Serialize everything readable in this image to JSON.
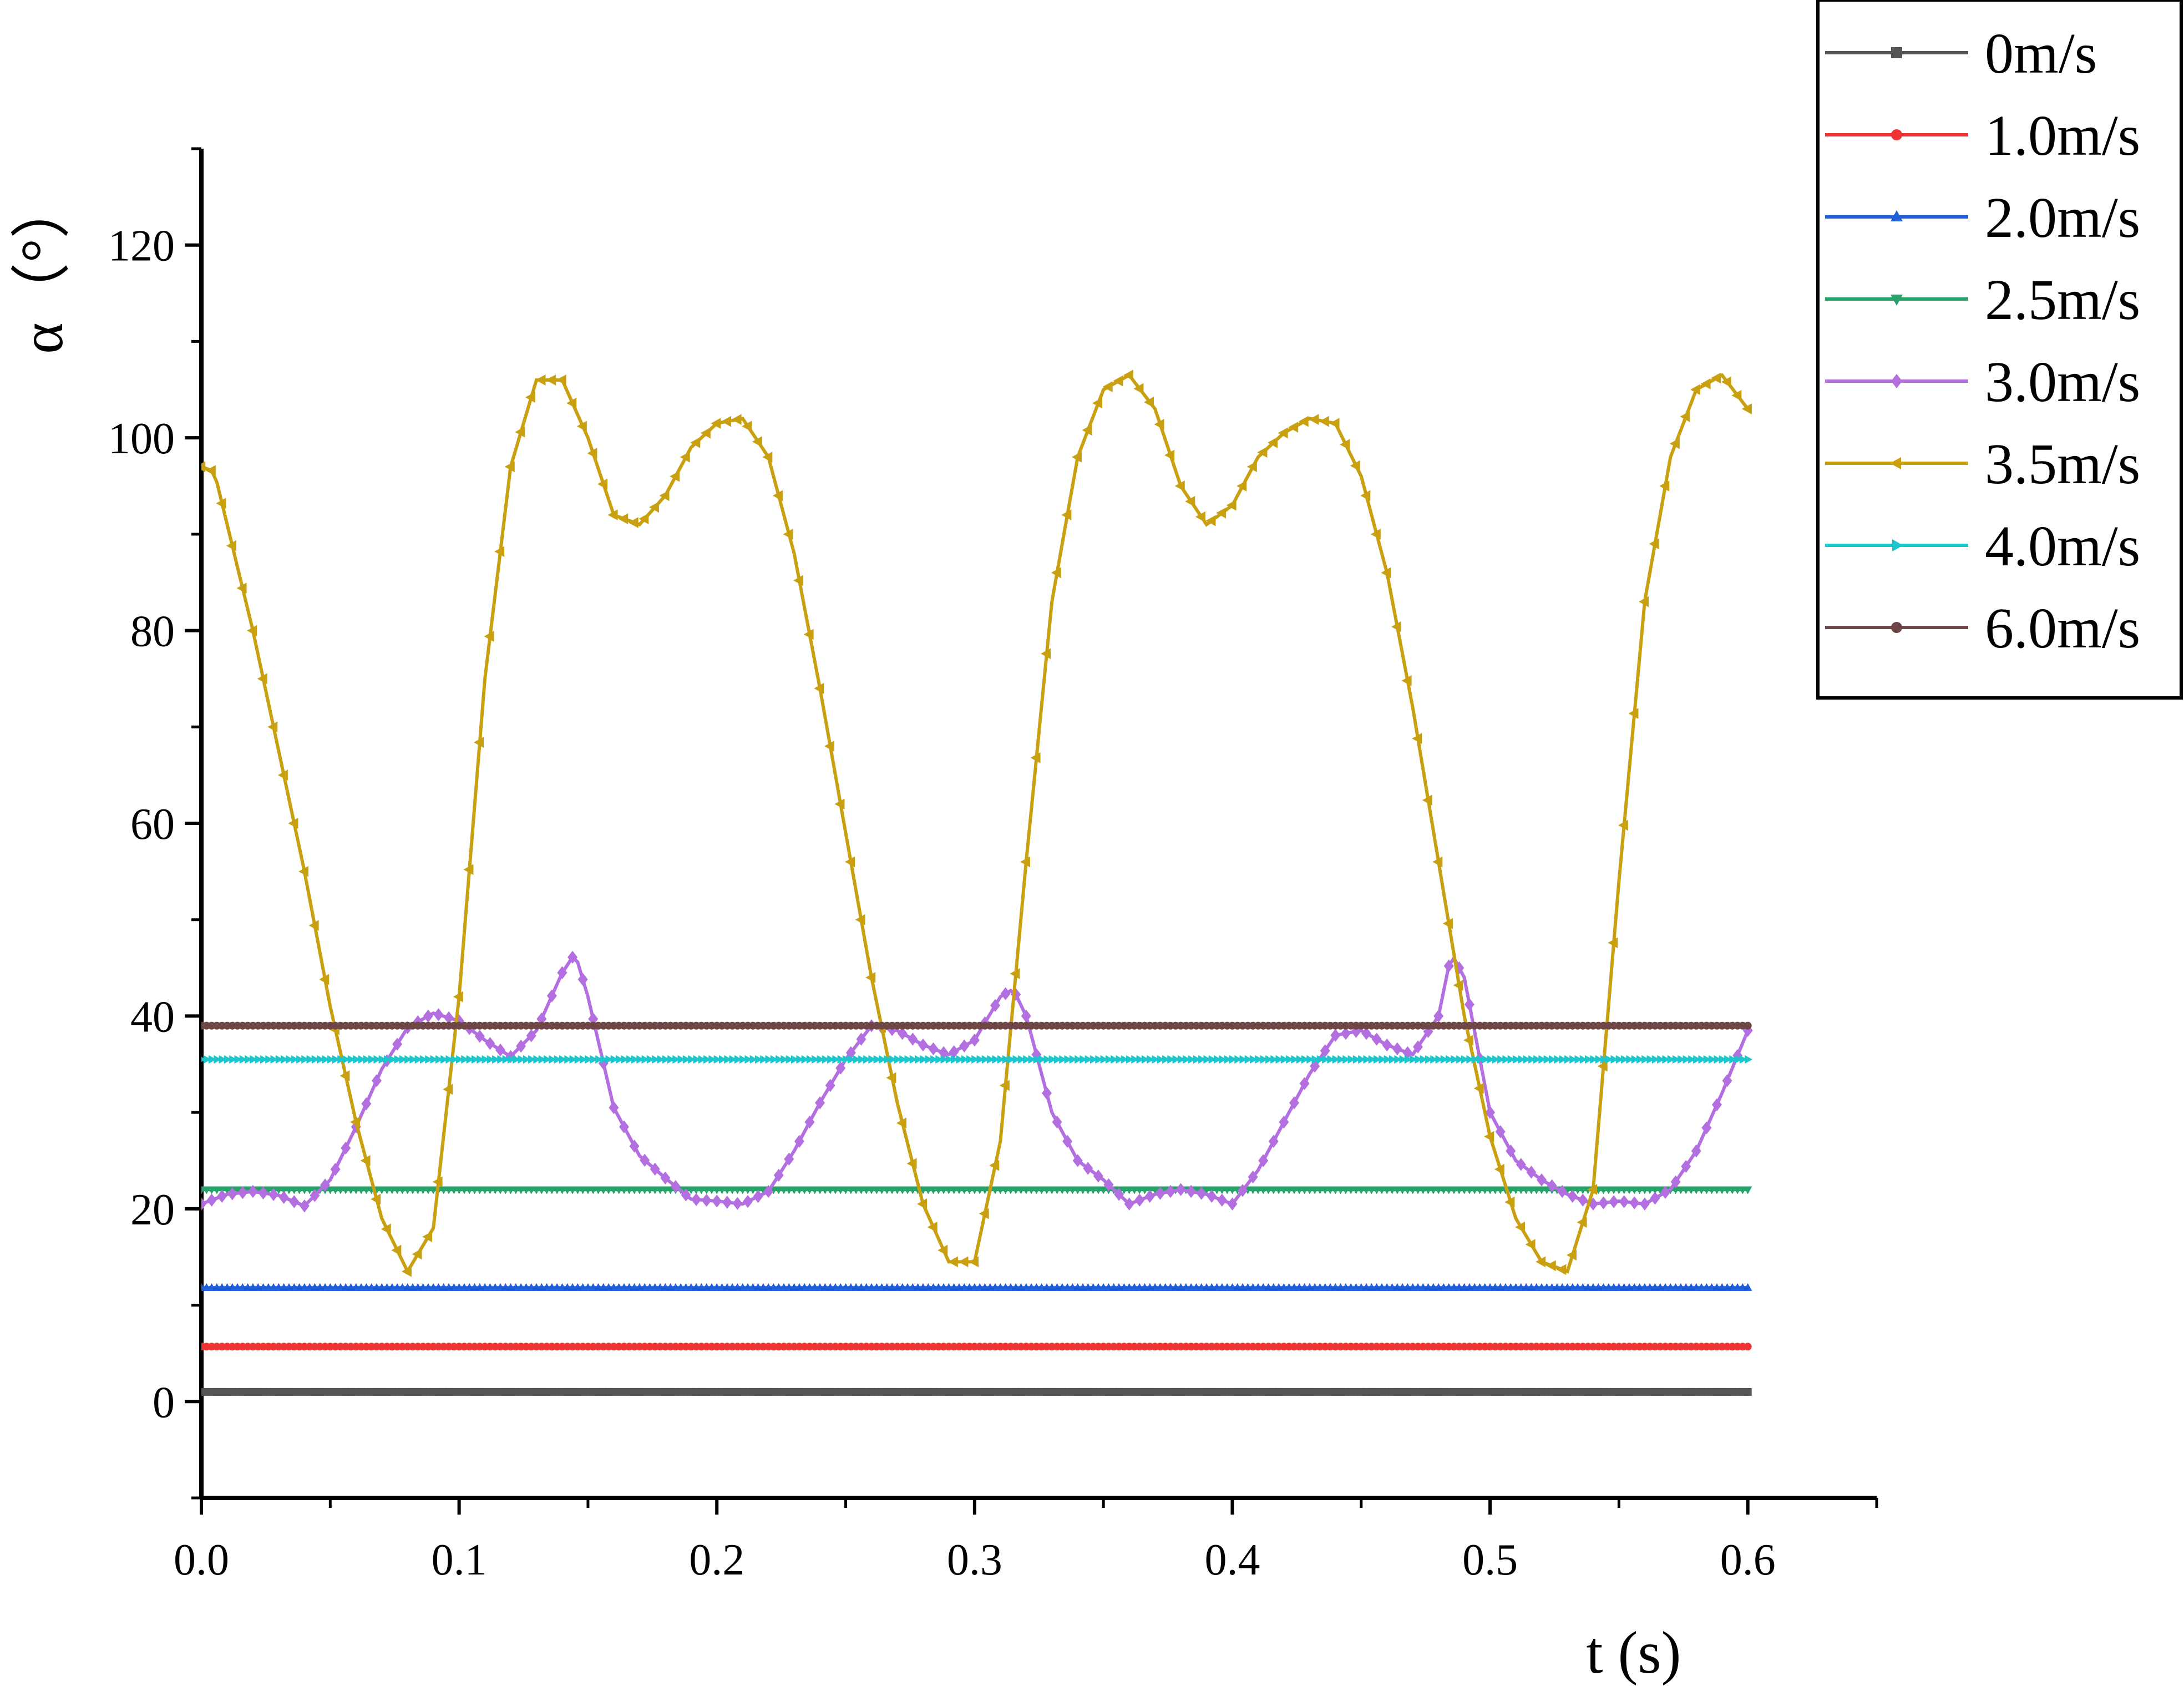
{
  "chart_data": {
    "type": "line",
    "xlabel": "t (s)",
    "ylabel": "α（°）",
    "xlim": [
      0,
      0.65
    ],
    "ylim": [
      -10,
      130
    ],
    "x_ticks": [
      0.0,
      0.1,
      0.2,
      0.3,
      0.4,
      0.5,
      0.6
    ],
    "x_tick_labels": [
      "0.0",
      "0.1",
      "0.2",
      "0.3",
      "0.4",
      "0.5",
      "0.6"
    ],
    "y_ticks": [
      0,
      20,
      40,
      60,
      80,
      100,
      120
    ],
    "y_tick_labels": [
      "0",
      "20",
      "40",
      "60",
      "80",
      "100",
      "120"
    ],
    "grid": false,
    "legend_position": "top-right",
    "series": [
      {
        "name": "0m/s",
        "color": "#555555",
        "marker": "square",
        "x": [
          0,
          0.6
        ],
        "y": [
          1.0,
          1.0
        ]
      },
      {
        "name": "1.0m/s",
        "color": "#ee3333",
        "marker": "circle",
        "x": [
          0,
          0.6
        ],
        "y": [
          5.7,
          5.7
        ]
      },
      {
        "name": "2.0m/s",
        "color": "#1f5fd8",
        "marker": "triangle-up",
        "x": [
          0,
          0.6
        ],
        "y": [
          11.8,
          11.8
        ]
      },
      {
        "name": "2.5m/s",
        "color": "#27a36a",
        "marker": "triangle-down",
        "x": [
          0,
          0.6
        ],
        "y": [
          22.0,
          22.0
        ]
      },
      {
        "name": "3.0m/s",
        "color": "#b36ee0",
        "marker": "diamond",
        "x": [
          0,
          0.01,
          0.02,
          0.03,
          0.04,
          0.05,
          0.06,
          0.07,
          0.08,
          0.09,
          0.1,
          0.11,
          0.12,
          0.13,
          0.14,
          0.145,
          0.15,
          0.16,
          0.17,
          0.18,
          0.19,
          0.2,
          0.21,
          0.22,
          0.23,
          0.24,
          0.25,
          0.26,
          0.27,
          0.28,
          0.29,
          0.3,
          0.31,
          0.315,
          0.32,
          0.33,
          0.34,
          0.35,
          0.36,
          0.37,
          0.38,
          0.39,
          0.4,
          0.41,
          0.42,
          0.43,
          0.44,
          0.45,
          0.46,
          0.47,
          0.48,
          0.485,
          0.49,
          0.5,
          0.51,
          0.52,
          0.53,
          0.54,
          0.55,
          0.56,
          0.57,
          0.58,
          0.59,
          0.6
        ],
        "y": [
          20.5,
          21.5,
          21.8,
          21.4,
          20.3,
          23.0,
          28.5,
          34.5,
          38.8,
          40.3,
          39.5,
          37.5,
          35.8,
          38.5,
          44.5,
          46.5,
          42.0,
          30.5,
          25.5,
          23.2,
          21.0,
          20.8,
          20.5,
          21.8,
          26.0,
          31.0,
          35.5,
          39.0,
          38.5,
          37.0,
          36.0,
          37.5,
          42.0,
          42.8,
          40.0,
          30.0,
          25.0,
          23.0,
          20.5,
          21.5,
          22.0,
          21.5,
          20.5,
          24.0,
          29.0,
          34.0,
          38.0,
          38.5,
          37.0,
          36.0,
          40.0,
          46.5,
          44.0,
          30.0,
          25.0,
          23.0,
          21.5,
          20.5,
          20.8,
          20.5,
          22.0,
          26.0,
          32.0,
          38.5
        ]
      },
      {
        "name": "3.5m/s",
        "color": "#c9a010",
        "marker": "triangle-left",
        "x": [
          0,
          0.005,
          0.02,
          0.04,
          0.05,
          0.06,
          0.07,
          0.08,
          0.09,
          0.1,
          0.11,
          0.12,
          0.13,
          0.14,
          0.15,
          0.16,
          0.17,
          0.18,
          0.19,
          0.2,
          0.21,
          0.22,
          0.23,
          0.24,
          0.25,
          0.26,
          0.27,
          0.28,
          0.29,
          0.3,
          0.31,
          0.32,
          0.33,
          0.34,
          0.35,
          0.36,
          0.37,
          0.38,
          0.39,
          0.4,
          0.41,
          0.42,
          0.43,
          0.44,
          0.45,
          0.46,
          0.47,
          0.48,
          0.49,
          0.5,
          0.51,
          0.52,
          0.53,
          0.54,
          0.55,
          0.56,
          0.57,
          0.58,
          0.59,
          0.6
        ],
        "y": [
          97.0,
          96.5,
          80.0,
          55.0,
          41.0,
          29.0,
          19.0,
          13.5,
          18.0,
          42.0,
          75.0,
          97.0,
          106.0,
          106.0,
          100.0,
          92.0,
          91.0,
          94.0,
          99.0,
          101.5,
          102.0,
          98.0,
          88.0,
          74.0,
          59.0,
          44.0,
          31.0,
          20.5,
          14.5,
          14.5,
          27.0,
          56.0,
          83.0,
          98.0,
          105.0,
          106.5,
          103.0,
          95.0,
          91.0,
          93.0,
          98.0,
          100.5,
          102.0,
          101.5,
          96.0,
          86.0,
          72.0,
          56.0,
          40.0,
          27.5,
          19.0,
          14.5,
          13.5,
          22.0,
          54.0,
          83.0,
          98.0,
          105.0,
          106.5,
          103.0
        ]
      },
      {
        "name": "4.0m/s",
        "color": "#1cc6cc",
        "marker": "triangle-right",
        "x": [
          0,
          0.6
        ],
        "y": [
          35.5,
          35.5
        ]
      },
      {
        "name": "6.0m/s",
        "color": "#6e4646",
        "marker": "circle",
        "x": [
          0,
          0.6
        ],
        "y": [
          39.0,
          39.0
        ]
      }
    ]
  }
}
